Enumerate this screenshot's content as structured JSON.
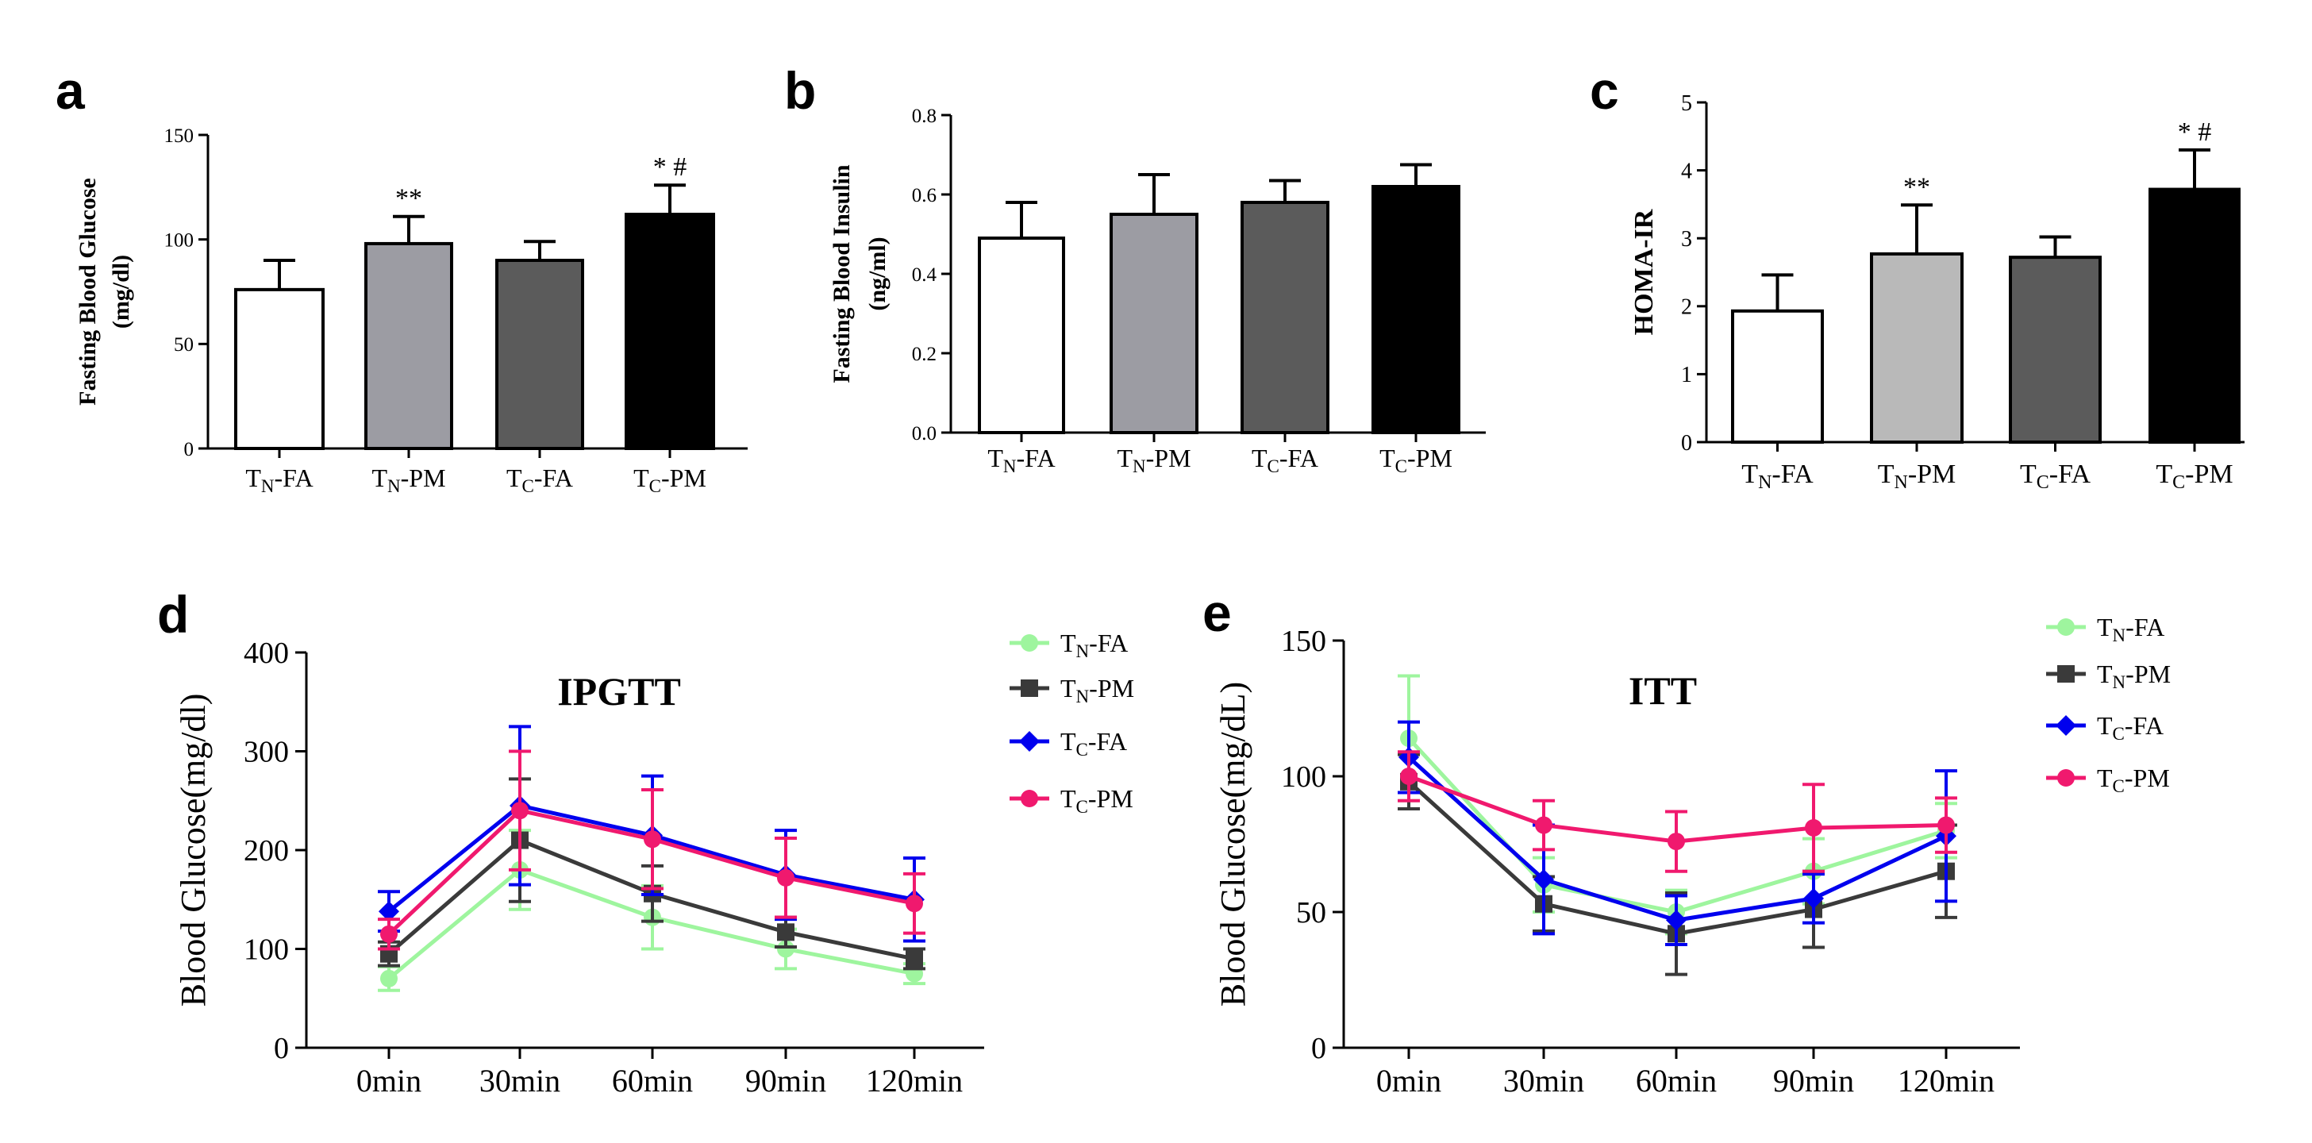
{
  "chart_data": [
    {
      "panel": "a",
      "type": "bar",
      "title": "",
      "ylabel": "Fasting Blood Glucose",
      "ylabel_unit": "(mg/dl)",
      "ylim": [
        0,
        150
      ],
      "yticks": [
        "0",
        "50",
        "100",
        "150"
      ],
      "categories": [
        {
          "main": "T",
          "sub": "N",
          "rest": "-FA"
        },
        {
          "main": "T",
          "sub": "N",
          "rest": "-PM"
        },
        {
          "main": "T",
          "sub": "C",
          "rest": "-FA"
        },
        {
          "main": "T",
          "sub": "C",
          "rest": "-PM"
        }
      ],
      "values": [
        76,
        98,
        90,
        112
      ],
      "errors": [
        14,
        13,
        9,
        14
      ],
      "annotations": [
        "",
        "**",
        "",
        "* #"
      ],
      "colors": [
        "#ffffff",
        "#9c9ca3",
        "#5b5b5b",
        "#000000"
      ]
    },
    {
      "panel": "b",
      "type": "bar",
      "title": "",
      "ylabel": "Fasting Blood Insulin",
      "ylabel_unit": "(ng/ml)",
      "ylim": [
        0,
        0.8
      ],
      "yticks": [
        "0.0",
        "0.2",
        "0.4",
        "0.6",
        "0.8"
      ],
      "categories": [
        {
          "main": "T",
          "sub": "N",
          "rest": "-FA"
        },
        {
          "main": "T",
          "sub": "N",
          "rest": "-PM"
        },
        {
          "main": "T",
          "sub": "C",
          "rest": "-FA"
        },
        {
          "main": "T",
          "sub": "C",
          "rest": "-PM"
        }
      ],
      "values": [
        0.49,
        0.55,
        0.58,
        0.62
      ],
      "errors": [
        0.09,
        0.1,
        0.055,
        0.055
      ],
      "annotations": [
        "",
        "",
        "",
        ""
      ],
      "colors": [
        "#ffffff",
        "#9c9ca3",
        "#5b5b5b",
        "#000000"
      ]
    },
    {
      "panel": "c",
      "type": "bar",
      "title": "",
      "ylabel": "HOMA-IR",
      "ylabel_unit": "",
      "ylim": [
        0,
        5
      ],
      "yticks": [
        "0",
        "1",
        "2",
        "3",
        "4",
        "5"
      ],
      "categories": [
        {
          "main": "T",
          "sub": "N",
          "rest": "-FA"
        },
        {
          "main": "T",
          "sub": "N",
          "rest": "-PM"
        },
        {
          "main": "T",
          "sub": "C",
          "rest": "-FA"
        },
        {
          "main": "T",
          "sub": "C",
          "rest": "-PM"
        }
      ],
      "values": [
        1.93,
        2.77,
        2.72,
        3.72
      ],
      "errors": [
        0.53,
        0.72,
        0.3,
        0.58
      ],
      "annotations": [
        "",
        "**",
        "",
        "* #"
      ],
      "colors": [
        "#ffffff",
        "#b9b9b9",
        "#5b5b5b",
        "#000000"
      ]
    },
    {
      "panel": "d",
      "type": "line",
      "title": "IPGTT",
      "ylabel": "Blood Glucose(mg/dl)",
      "ylim": [
        0,
        400
      ],
      "yticks": [
        "0",
        "100",
        "200",
        "300",
        "400"
      ],
      "x": [
        "0min",
        "30min",
        "60min",
        "90min",
        "120min"
      ],
      "series": [
        {
          "main": "T",
          "sub": "N",
          "rest": "-FA",
          "marker": "circle",
          "color": "#9ef59e",
          "values": [
            70,
            180,
            132,
            100,
            75
          ],
          "errors": [
            12,
            40,
            32,
            20,
            10
          ]
        },
        {
          "main": "T",
          "sub": "N",
          "rest": "-PM",
          "marker": "square",
          "color": "#3a3a3a",
          "values": [
            95,
            210,
            156,
            117,
            90
          ],
          "errors": [
            12,
            62,
            28,
            15,
            10
          ]
        },
        {
          "main": "T",
          "sub": "C",
          "rest": "-FA",
          "marker": "diamond",
          "color": "#0000ee",
          "values": [
            138,
            245,
            215,
            175,
            150
          ],
          "errors": [
            20,
            80,
            60,
            45,
            42
          ]
        },
        {
          "main": "T",
          "sub": "C",
          "rest": "-PM",
          "marker": "circle",
          "color": "#f0196e",
          "values": [
            115,
            240,
            211,
            172,
            146
          ],
          "errors": [
            15,
            60,
            50,
            40,
            30
          ]
        }
      ]
    },
    {
      "panel": "e",
      "type": "line",
      "title": "ITT",
      "ylabel": "Blood Glucose(mg/dL)",
      "ylim": [
        0,
        150
      ],
      "yticks": [
        "0",
        "50",
        "100",
        "150"
      ],
      "x": [
        "0min",
        "30min",
        "60min",
        "90min",
        "120min"
      ],
      "series": [
        {
          "main": "T",
          "sub": "N",
          "rest": "-FA",
          "marker": "circle",
          "color": "#9ef59e",
          "values": [
            114,
            60,
            50,
            65,
            80
          ],
          "errors": [
            23,
            10,
            8,
            12,
            10
          ]
        },
        {
          "main": "T",
          "sub": "N",
          "rest": "-PM",
          "marker": "square",
          "color": "#3a3a3a",
          "values": [
            98,
            53,
            42,
            51,
            65
          ],
          "errors": [
            10,
            10,
            15,
            14,
            17
          ]
        },
        {
          "main": "T",
          "sub": "C",
          "rest": "-FA",
          "marker": "diamond",
          "color": "#0000ee",
          "values": [
            107,
            62,
            47,
            55,
            78
          ],
          "errors": [
            13,
            20,
            9,
            9,
            24
          ]
        },
        {
          "main": "T",
          "sub": "C",
          "rest": "-PM",
          "marker": "circle",
          "color": "#f0196e",
          "values": [
            100,
            82,
            76,
            81,
            82
          ],
          "errors": [
            9,
            9,
            11,
            16,
            10
          ]
        }
      ]
    }
  ]
}
